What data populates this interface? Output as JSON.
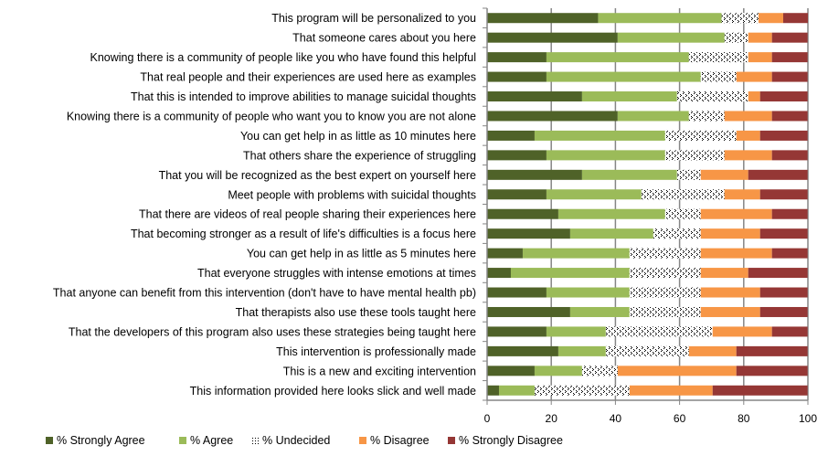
{
  "chart_data": {
    "type": "bar",
    "orientation": "horizontal",
    "stacked": true,
    "title": "",
    "xlabel": "",
    "ylabel": "",
    "xlim": [
      0,
      100
    ],
    "xticks": [
      0,
      20,
      40,
      60,
      80,
      100
    ],
    "grid": "vertical",
    "legend_position": "bottom",
    "categories": [
      "This program will be personalized to you",
      "That someone cares about you here",
      "Knowing there is a community of people like you who have found this helpful",
      "That real people and their experiences are used here as examples",
      "That this is intended to improve abilities to manage suicidal thoughts",
      "Knowing there is a community of people who want you to know you are not alone",
      "You can get help in as little as 10 minutes here",
      "That others share the experience of struggling",
      "That you will be recognized as the best expert on yourself here",
      "Meet people with problems with suicidal thoughts",
      "That there are videos of real people sharing their experiences here",
      "That becoming stronger as a result of life's difficulties is a focus here",
      "You can get help in as little as 5 minutes here",
      "That everyone struggles with intense emotions at times",
      "That anyone can benefit from this intervention (don't have to have mental health pb)",
      "That therapists also use these tools taught here",
      "That the developers of this program also uses these strategies being taught here",
      "This intervention is professionally made",
      "This is a new and exciting intervention",
      "This information provided here looks slick and well made"
    ],
    "series": [
      {
        "name": "% Strongly Agree",
        "color": "#4F6228",
        "pattern": "solid",
        "values": [
          34.6,
          40.7,
          18.5,
          18.5,
          29.6,
          40.7,
          14.8,
          18.5,
          29.6,
          18.5,
          22.2,
          25.9,
          11.1,
          7.4,
          18.5,
          25.9,
          18.5,
          22.2,
          14.8,
          3.7
        ]
      },
      {
        "name": "% Agree",
        "color": "#9BBB59",
        "pattern": "solid",
        "values": [
          38.5,
          33.3,
          44.4,
          48.1,
          29.6,
          22.2,
          40.7,
          37.0,
          29.6,
          29.6,
          33.3,
          25.9,
          33.3,
          37.0,
          25.9,
          18.5,
          18.5,
          14.8,
          14.8,
          11.1
        ]
      },
      {
        "name": "% Undecided",
        "color": "#000000",
        "pattern": "dotted",
        "values": [
          11.5,
          7.4,
          18.5,
          11.1,
          22.2,
          11.1,
          22.2,
          18.5,
          7.4,
          25.9,
          11.1,
          14.8,
          22.2,
          22.2,
          22.2,
          22.2,
          33.3,
          25.9,
          11.1,
          29.6
        ]
      },
      {
        "name": "% Disagree",
        "color": "#F79646",
        "pattern": "solid",
        "values": [
          7.7,
          7.4,
          7.4,
          11.1,
          3.7,
          14.8,
          7.4,
          14.8,
          14.8,
          11.1,
          22.2,
          18.5,
          22.2,
          14.8,
          18.5,
          18.5,
          18.5,
          14.8,
          37.0,
          25.9
        ]
      },
      {
        "name": "% Strongly Disagree",
        "color": "#953735",
        "pattern": "solid",
        "values": [
          7.7,
          11.1,
          11.1,
          11.1,
          14.8,
          11.1,
          14.8,
          11.1,
          18.5,
          14.8,
          11.1,
          14.8,
          11.1,
          18.5,
          14.8,
          14.8,
          11.1,
          22.2,
          22.2,
          29.6
        ]
      }
    ]
  }
}
